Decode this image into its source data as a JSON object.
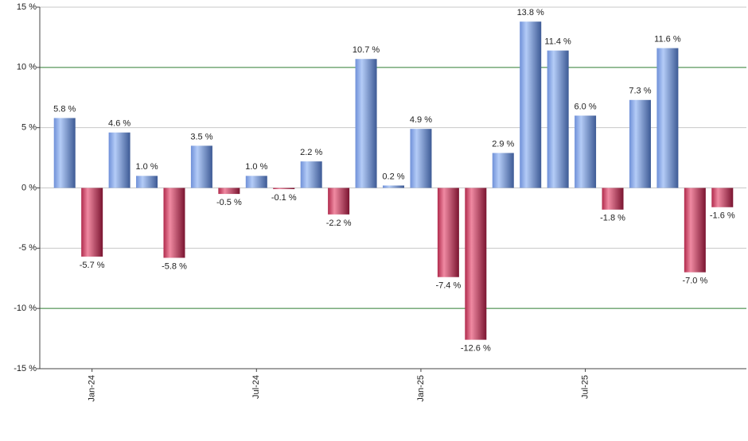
{
  "chart_data": {
    "type": "bar",
    "categories": [
      null,
      "Jan-24",
      null,
      null,
      null,
      null,
      null,
      "Jul-24",
      null,
      null,
      null,
      null,
      null,
      "Jan-25",
      null,
      null,
      null,
      null,
      null,
      "Jul-25",
      null,
      null,
      null,
      null,
      null
    ],
    "values": [
      5.8,
      -5.7,
      4.6,
      1.0,
      -5.8,
      3.5,
      -0.5,
      1.0,
      -0.1,
      2.2,
      -2.2,
      10.7,
      0.2,
      4.9,
      -7.4,
      -12.6,
      2.9,
      13.8,
      11.4,
      6.0,
      -1.8,
      7.3,
      11.6,
      -7.0,
      -1.6
    ],
    "value_labels": [
      "5.8 %",
      "-5.7 %",
      "4.6 %",
      "1.0 %",
      "-5.8 %",
      "3.5 %",
      "-0.5 %",
      "1.0 %",
      "-0.1 %",
      "2.2 %",
      "-2.2 %",
      "10.7 %",
      "0.2 %",
      "4.9 %",
      "-7.4 %",
      "-12.6 %",
      "2.9 %",
      "13.8 %",
      "11.4 %",
      "6.0 %",
      "-1.8 %",
      "7.3 %",
      "11.6 %",
      "-7.0 %",
      "-1.6 %"
    ],
    "color_positive": "#7a9ee6",
    "color_negative": "#c8345a",
    "ylim": [
      -15,
      15
    ],
    "yticks": [
      {
        "value": -15,
        "label": "-15 %"
      },
      {
        "value": -10,
        "label": "-10 %"
      },
      {
        "value": -5,
        "label": "-5 %"
      },
      {
        "value": 0,
        "label": "0 %"
      },
      {
        "value": 5,
        "label": "5 %"
      },
      {
        "value": 10,
        "label": "10 %"
      },
      {
        "value": 15,
        "label": "15 %"
      }
    ],
    "grid": true,
    "grid_colors": [
      "#c8c8c8",
      "#2e7d32",
      "#c8c8c8",
      "#c8c8c8",
      "#c8c8c8",
      "#2e7d32",
      "#c8c8c8"
    ]
  }
}
